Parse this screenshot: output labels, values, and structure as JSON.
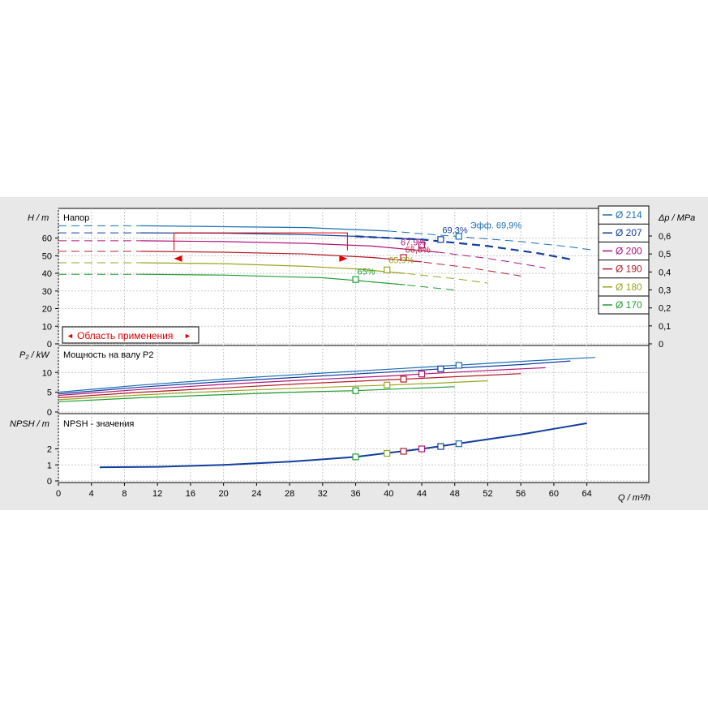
{
  "panels": {
    "head": {
      "axis_label_left": "H / m",
      "axis_label_right": "Δp / MPa",
      "title": "Напор",
      "yticks": [
        "0",
        "10",
        "20",
        "30",
        "40",
        "50",
        "60"
      ],
      "yticks_right": [
        "0",
        "0,1",
        "0,2",
        "0,3",
        "0,4",
        "0,5",
        "0,6"
      ]
    },
    "power": {
      "axis_label_left": "P₂ / kW",
      "title": "Мощность на валу P2",
      "yticks": [
        "0",
        "5",
        "10"
      ]
    },
    "npsh": {
      "axis_label_left": "NPSH / m",
      "title": "NPSH - значения",
      "yticks": [
        "0",
        "1",
        "2"
      ]
    }
  },
  "x_axis": {
    "label": "Q / m³/h",
    "ticks": [
      "0",
      "4",
      "8",
      "12",
      "16",
      "20",
      "24",
      "28",
      "32",
      "36",
      "40",
      "44",
      "48",
      "52",
      "56",
      "60",
      "64"
    ]
  },
  "range_label": "Область применения",
  "legend": [
    {
      "label": "Ø 214",
      "color": "#1a6fb5"
    },
    {
      "label": "Ø 207",
      "color": "#123e9e"
    },
    {
      "label": "Ø 200",
      "color": "#b0147c"
    },
    {
      "label": "Ø 190",
      "color": "#b41e28"
    },
    {
      "label": "Ø 180",
      "color": "#9aa520"
    },
    {
      "label": "Ø 170",
      "color": "#1e9e32"
    }
  ],
  "chart_data": [
    {
      "type": "line",
      "title": "Напор",
      "xlabel": "Q / m³/h",
      "ylabel": "H / m",
      "xlim": [
        0,
        71
      ],
      "ylim": [
        0,
        70
      ],
      "y2label": "Δp / MPa",
      "y2lim": [
        0,
        0.7
      ],
      "legend_position": "right",
      "series": [
        {
          "name": "Ø 214",
          "color": "#1a6fb5",
          "points": [
            [
              0,
              67
            ],
            [
              10,
              67
            ],
            [
              20,
              66.5
            ],
            [
              30,
              66
            ],
            [
              40,
              64
            ],
            [
              48,
              61
            ],
            [
              56,
              58
            ],
            [
              62,
              55
            ],
            [
              65,
              53
            ]
          ]
        },
        {
          "name": "Ø 207",
          "color": "#123e9e",
          "points": [
            [
              0,
              63
            ],
            [
              10,
              63
            ],
            [
              20,
              62.8
            ],
            [
              30,
              62
            ],
            [
              36,
              61
            ],
            [
              44,
              59.2
            ],
            [
              52,
              55.5
            ],
            [
              58,
              51.5
            ],
            [
              62,
              48
            ]
          ]
        },
        {
          "name": "Ø 200",
          "color": "#b0147c",
          "points": [
            [
              0,
              58.5
            ],
            [
              10,
              58.5
            ],
            [
              20,
              58
            ],
            [
              30,
              57
            ],
            [
              38,
              55.5
            ],
            [
              46,
              52
            ],
            [
              52,
              48.5
            ],
            [
              56,
              45.5
            ],
            [
              59,
              43
            ]
          ]
        },
        {
          "name": "Ø 190",
          "color": "#b41e28",
          "points": [
            [
              0,
              52.5
            ],
            [
              10,
              52.5
            ],
            [
              20,
              52
            ],
            [
              30,
              51
            ],
            [
              38,
              49
            ],
            [
              44,
              46.5
            ],
            [
              50,
              43
            ],
            [
              56,
              38.5
            ]
          ]
        },
        {
          "name": "Ø 180",
          "color": "#9aa520",
          "points": [
            [
              0,
              46
            ],
            [
              10,
              46
            ],
            [
              20,
              45.5
            ],
            [
              30,
              44
            ],
            [
              36,
              42.5
            ],
            [
              42,
              40
            ],
            [
              48,
              37
            ],
            [
              52,
              34.5
            ]
          ]
        },
        {
          "name": "Ø 170",
          "color": "#1e9e32",
          "points": [
            [
              0,
              39.5
            ],
            [
              10,
              39.5
            ],
            [
              20,
              39
            ],
            [
              26,
              38.3
            ],
            [
              32,
              37.5
            ],
            [
              36,
              36
            ],
            [
              42,
              33.5
            ],
            [
              48,
              30.5
            ]
          ]
        }
      ],
      "annotations": [
        {
          "text": "Эфф.  69,9%",
          "color": "#1a6fb5"
        },
        {
          "text": "69,3%",
          "color": "#123e9e"
        },
        {
          "text": "67,9%",
          "color": "#b0147c"
        },
        {
          "text": "66,6%",
          "color": "#b41e28"
        },
        {
          "text": "65,9%",
          "color": "#9aa520"
        },
        {
          "text": "65%",
          "color": "#1e9e32"
        }
      ],
      "efficiency_points": [
        {
          "color": "#1a6fb5",
          "x": 48.5,
          "y": 61
        },
        {
          "color": "#123e9e",
          "x": 46.3,
          "y": 59.2
        },
        {
          "color": "#b0147c",
          "x": 44,
          "y": 56
        },
        {
          "color": "#b41e28",
          "x": 41.8,
          "y": 49
        },
        {
          "color": "#9aa520",
          "x": 39.8,
          "y": 42
        },
        {
          "color": "#1e9e32",
          "x": 36,
          "y": 36.5
        }
      ],
      "application_range": {
        "q_min": 14,
        "q_max": 35
      }
    },
    {
      "type": "line",
      "title": "Мощность на валу P2",
      "xlabel": "Q / m³/h",
      "ylabel": "P₂ / kW",
      "xlim": [
        0,
        71
      ],
      "ylim": [
        0,
        14
      ],
      "series": [
        {
          "name": "Ø 214",
          "color": "#1a6fb5",
          "points": [
            [
              0,
              5
            ],
            [
              10,
              6.8
            ],
            [
              20,
              8.3
            ],
            [
              30,
              9.6
            ],
            [
              40,
              10.8
            ],
            [
              48,
              11.8
            ],
            [
              56,
              12.8
            ],
            [
              65,
              13.8
            ]
          ]
        },
        {
          "name": "Ø 207",
          "color": "#123e9e",
          "points": [
            [
              0,
              4.6
            ],
            [
              10,
              6.3
            ],
            [
              20,
              7.7
            ],
            [
              30,
              8.9
            ],
            [
              40,
              10.1
            ],
            [
              46.3,
              10.9
            ],
            [
              56,
              12
            ],
            [
              62,
              12.9
            ]
          ]
        },
        {
          "name": "Ø 200",
          "color": "#b0147c",
          "points": [
            [
              0,
              4.2
            ],
            [
              10,
              5.7
            ],
            [
              20,
              7
            ],
            [
              30,
              8.1
            ],
            [
              40,
              9.1
            ],
            [
              44,
              9.6
            ],
            [
              52,
              10.5
            ],
            [
              59,
              11.2
            ]
          ]
        },
        {
          "name": "Ø 190",
          "color": "#b41e28",
          "points": [
            [
              0,
              3.6
            ],
            [
              10,
              5
            ],
            [
              20,
              6.1
            ],
            [
              30,
              7.2
            ],
            [
              41.8,
              8.3
            ],
            [
              50,
              9.1
            ],
            [
              56,
              9.7
            ]
          ]
        },
        {
          "name": "Ø 180",
          "color": "#9aa520",
          "points": [
            [
              0,
              3.1
            ],
            [
              10,
              4.3
            ],
            [
              20,
              5.3
            ],
            [
              30,
              6.1
            ],
            [
              39.8,
              6.8
            ],
            [
              46,
              7.3
            ],
            [
              52,
              7.9
            ]
          ]
        },
        {
          "name": "Ø 170",
          "color": "#1e9e32",
          "points": [
            [
              0,
              2.6
            ],
            [
              10,
              3.6
            ],
            [
              20,
              4.4
            ],
            [
              30,
              5.1
            ],
            [
              36,
              5.4
            ],
            [
              42,
              5.9
            ],
            [
              48,
              6.4
            ]
          ]
        }
      ],
      "markers": [
        {
          "color": "#1a6fb5",
          "x": 48.5,
          "y": 11.8
        },
        {
          "color": "#123e9e",
          "x": 46.3,
          "y": 10.9
        },
        {
          "color": "#b0147c",
          "x": 44,
          "y": 9.6
        },
        {
          "color": "#b41e28",
          "x": 41.8,
          "y": 8.3
        },
        {
          "color": "#9aa520",
          "x": 39.8,
          "y": 6.8
        },
        {
          "color": "#1e9e32",
          "x": 36,
          "y": 5.4
        }
      ]
    },
    {
      "type": "line",
      "title": "NPSH - значения",
      "xlabel": "Q / m³/h",
      "ylabel": "NPSH / m",
      "xlim": [
        0,
        71
      ],
      "ylim": [
        0,
        3.6
      ],
      "series": [
        {
          "name": "NPSH",
          "color": "#123e9e",
          "points": [
            [
              5,
              0.85
            ],
            [
              12,
              0.88
            ],
            [
              20,
              1
            ],
            [
              28,
              1.2
            ],
            [
              36,
              1.5
            ],
            [
              40,
              1.75
            ],
            [
              44,
              2
            ],
            [
              48,
              2.3
            ],
            [
              52,
              2.6
            ],
            [
              56,
              2.9
            ],
            [
              60,
              3.25
            ],
            [
              64,
              3.6
            ]
          ]
        }
      ],
      "markers": [
        {
          "color": "#1a6fb5",
          "x": 48.5,
          "y": 2.32
        },
        {
          "color": "#123e9e",
          "x": 46.3,
          "y": 2.15
        },
        {
          "color": "#b0147c",
          "x": 44,
          "y": 2
        },
        {
          "color": "#b41e28",
          "x": 41.8,
          "y": 1.85
        },
        {
          "color": "#9aa520",
          "x": 39.8,
          "y": 1.72
        },
        {
          "color": "#1e9e32",
          "x": 36,
          "y": 1.5
        }
      ]
    }
  ]
}
